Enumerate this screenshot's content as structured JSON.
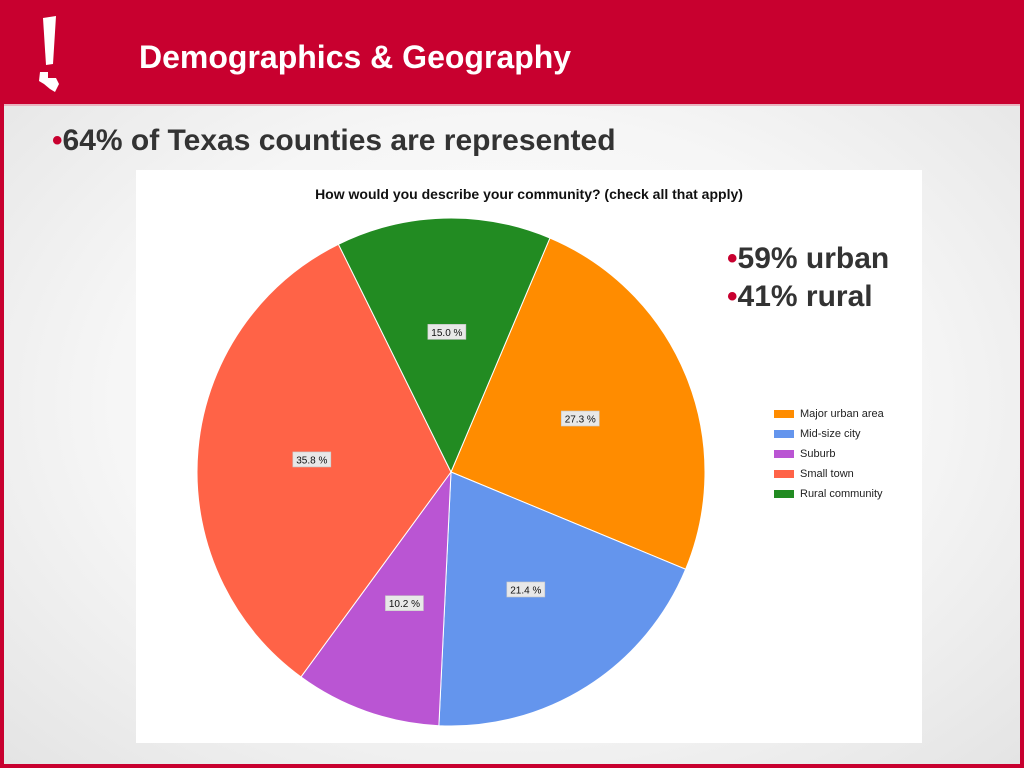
{
  "slide": {
    "title": "Demographics & Geography",
    "bullet_marker": "•",
    "bullet": "64% of Texas counties are represented",
    "notes": [
      "59% urban",
      "41% rural"
    ]
  },
  "logo": {
    "icon": "exclamation-texas-icon",
    "color": "#ffffff"
  },
  "colors": {
    "header": "#c8002f",
    "bullet": "#c8002f",
    "text": "#333333"
  },
  "chart_data": {
    "type": "pie",
    "title": "How would you describe your community? (check all that apply)",
    "slices": [
      {
        "name": "Major urban area",
        "value": 27.3,
        "label": "27.3 %",
        "color": "#ff8c00"
      },
      {
        "name": "Mid-size city",
        "value": 21.4,
        "label": "21.4 %",
        "color": "#6495ed"
      },
      {
        "name": "Suburb",
        "value": 10.2,
        "label": "10.2 %",
        "color": "#ba55d3"
      },
      {
        "name": "Small town",
        "value": 35.8,
        "label": "35.8 %",
        "color": "#ff6347"
      },
      {
        "name": "Rural community",
        "value": 15.0,
        "label": "15.0 %",
        "color": "#228b22"
      }
    ],
    "legend": {
      "position": "right"
    }
  }
}
